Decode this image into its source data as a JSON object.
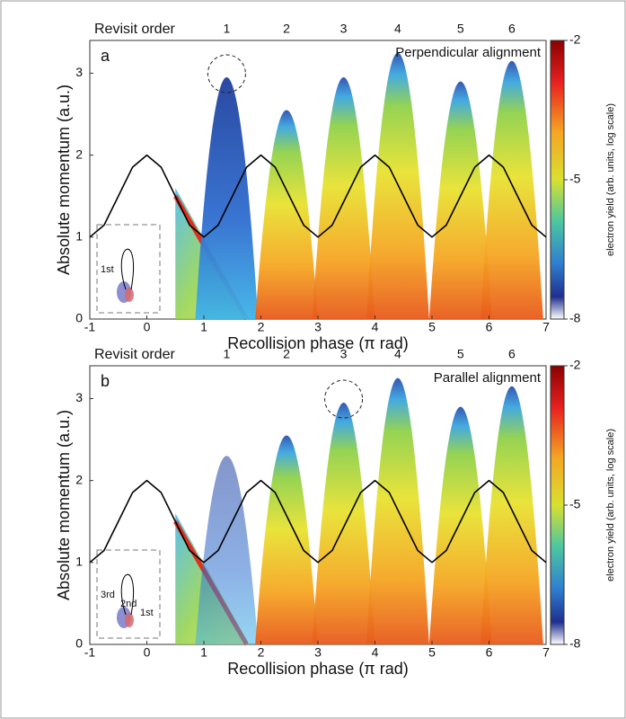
{
  "chart_data": [
    {
      "type": "density",
      "panel_label": "a",
      "annotation": "Perpendicular alignment",
      "revisit_label": "Revisit order",
      "revisit_orders": [
        "1",
        "2",
        "3",
        "4",
        "5",
        "6"
      ],
      "lobes": {
        "x": [
          1.4,
          2.45,
          3.45,
          4.4,
          5.5,
          6.4
        ],
        "values": [
          2.95,
          2.55,
          2.95,
          3.25,
          2.9,
          3.15
        ]
      },
      "curve": {
        "x": [
          -1,
          -0.75,
          -0.5,
          -0.25,
          0,
          0.25,
          0.5,
          0.75,
          1,
          1.25,
          1.5,
          1.75,
          2,
          2.25,
          2.5,
          2.75,
          3,
          3.25,
          3.5,
          3.75,
          4,
          4.25,
          4.5,
          4.75,
          5,
          5.25,
          5.5,
          5.75,
          6,
          6.25,
          6.5,
          6.75,
          7
        ],
        "values": [
          1,
          1.146,
          1.5,
          1.854,
          2,
          1.854,
          1.5,
          1.146,
          1,
          1.146,
          1.5,
          1.854,
          2,
          1.854,
          1.5,
          1.146,
          1,
          1.146,
          1.5,
          1.854,
          2,
          1.854,
          1.5,
          1.146,
          1,
          1.146,
          1.5,
          1.854,
          2,
          1.854,
          1.5,
          1.146,
          1
        ]
      },
      "xlabel": "Recollision phase (π rad)",
      "ylabel": "Absolute momentum (a.u.)",
      "xlim": [
        -1,
        7
      ],
      "xticks": [
        -1,
        0,
        1,
        2,
        3,
        4,
        5,
        6,
        7
      ],
      "ylim": [
        0,
        3.4
      ],
      "yticks": [
        0,
        1,
        2,
        3
      ],
      "colorbar": {
        "label": "electron yield (arb. units, log scale)",
        "lim": [
          -8,
          -2
        ],
        "ticks": [
          -2,
          -5,
          -8
        ]
      },
      "inset_labels": [
        "1st"
      ]
    },
    {
      "type": "density",
      "panel_label": "b",
      "annotation": "Parallel alignment",
      "revisit_label": "Revisit order",
      "revisit_orders": [
        "1",
        "2",
        "3",
        "4",
        "5",
        "6"
      ],
      "lobes": {
        "x": [
          1.4,
          2.45,
          3.45,
          4.4,
          5.5,
          6.4
        ],
        "values": [
          2.3,
          2.55,
          2.95,
          3.25,
          2.9,
          3.15
        ]
      },
      "curve": {
        "x": [
          -1,
          -0.75,
          -0.5,
          -0.25,
          0,
          0.25,
          0.5,
          0.75,
          1,
          1.25,
          1.5,
          1.75,
          2,
          2.25,
          2.5,
          2.75,
          3,
          3.25,
          3.5,
          3.75,
          4,
          4.25,
          4.5,
          4.75,
          5,
          5.25,
          5.5,
          5.75,
          6,
          6.25,
          6.5,
          6.75,
          7
        ],
        "values": [
          1,
          1.146,
          1.5,
          1.854,
          2,
          1.854,
          1.5,
          1.146,
          1,
          1.146,
          1.5,
          1.854,
          2,
          1.854,
          1.5,
          1.146,
          1,
          1.146,
          1.5,
          1.854,
          2,
          1.854,
          1.5,
          1.146,
          1,
          1.146,
          1.5,
          1.854,
          2,
          1.854,
          1.5,
          1.146,
          1
        ]
      },
      "xlabel": "Recollision phase (π rad)",
      "ylabel": "Absolute momentum (a.u.)",
      "xlim": [
        -1,
        7
      ],
      "xticks": [
        -1,
        0,
        1,
        2,
        3,
        4,
        5,
        6,
        7
      ],
      "ylim": [
        0,
        3.4
      ],
      "yticks": [
        0,
        1,
        2,
        3
      ],
      "colorbar": {
        "label": "electron yield (arb. units, log scale)",
        "lim": [
          -8,
          -2
        ],
        "ticks": [
          -2,
          -5,
          -8
        ]
      },
      "inset_labels": [
        "3rd",
        "2nd",
        "1st"
      ]
    }
  ]
}
